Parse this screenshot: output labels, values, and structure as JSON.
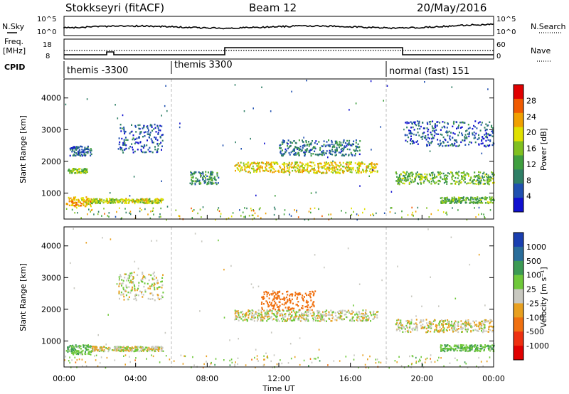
{
  "header": {
    "radar": "Stokkseyri (fitACF)",
    "beam": "Beam 12",
    "date": "20/May/2016"
  },
  "strip": {
    "nsky_label": "N.Sky",
    "nsearch_label": "N.Search",
    "left_top": "10^5",
    "left_bot": "10^0",
    "right_top": "10^5",
    "right_bot": "10^0",
    "freq_label": "Freq.",
    "mhz_label": "[MHz]",
    "freq_top": "18",
    "freq_bot": "8",
    "nave_label": "Nave",
    "nave_top": "60",
    "nave_bot": "0",
    "cpid_label": "CPID",
    "cpid_segments": [
      {
        "label": "themis -3300",
        "start_hour": 0
      },
      {
        "label": "themis 3300",
        "start_hour": 6
      },
      {
        "label": "normal (fast) 151",
        "start_hour": 18
      }
    ]
  },
  "power_panel": {
    "ylabel": "Slant Range [km]",
    "cbar_label": "Power [dB]",
    "cbar_ticks": [
      "4",
      "8",
      "12",
      "16",
      "20",
      "24",
      "28"
    ],
    "cbar_colors": [
      "#1010d0",
      "#2050b0",
      "#2f7f66",
      "#3f9f3f",
      "#80c020",
      "#e0e000",
      "#f0a000",
      "#f05a00",
      "#e00000"
    ]
  },
  "velocity_panel": {
    "ylabel": "Slant Range [km]",
    "cbar_label": "Velocity [m s⁻¹]",
    "cbar_ticks": [
      "1000",
      "500",
      "100",
      "25",
      "-25",
      "-100",
      "-500",
      "-1000"
    ],
    "cbar_colors": [
      "#1a3fb0",
      "#2a6d9a",
      "#3c9a54",
      "#6fc83a",
      "#c8c8c0",
      "#e8a020",
      "#f07010",
      "#ee3010",
      "#e00000"
    ]
  },
  "xaxis": {
    "label": "Time UT",
    "ticks": [
      "00:00",
      "04:00",
      "08:00",
      "12:00",
      "16:00",
      "20:00",
      "00:00"
    ]
  },
  "chart_data": [
    {
      "type": "heatmap",
      "title": "Power",
      "xlabel": "Time UT",
      "ylabel": "Slant Range [km]",
      "xlim_hours": [
        0,
        24
      ],
      "ylim": [
        180,
        4600
      ],
      "yticks": [
        1000,
        2000,
        3000,
        4000
      ],
      "colorbar": {
        "label": "Power [dB]",
        "range": [
          0,
          32
        ],
        "ticks": [
          4,
          8,
          12,
          16,
          20,
          24,
          28
        ]
      },
      "scatter_bands": [
        {
          "t0": 0.1,
          "t1": 1.5,
          "r0": 600,
          "r1": 900,
          "value_db": 22
        },
        {
          "t0": 1.5,
          "t1": 5.5,
          "r0": 700,
          "r1": 850,
          "value_db": 18
        },
        {
          "t0": 0.2,
          "t1": 1.3,
          "r0": 1650,
          "r1": 1800,
          "value_db": 16
        },
        {
          "t0": 0.3,
          "t1": 1.5,
          "r0": 2200,
          "r1": 2500,
          "value_db": 6
        },
        {
          "t0": 3.0,
          "t1": 5.5,
          "r0": 2300,
          "r1": 3200,
          "value_db": 6
        },
        {
          "t0": 7.0,
          "t1": 8.6,
          "r0": 1300,
          "r1": 1700,
          "value_db": 10
        },
        {
          "t0": 9.5,
          "t1": 17.5,
          "r0": 1650,
          "r1": 2000,
          "value_db": 20
        },
        {
          "t0": 12.0,
          "t1": 16.5,
          "r0": 2200,
          "r1": 2700,
          "value_db": 8
        },
        {
          "t0": 18.5,
          "t1": 24.0,
          "r0": 1300,
          "r1": 1700,
          "value_db": 14
        },
        {
          "t0": 19.0,
          "t1": 24.0,
          "r0": 2500,
          "r1": 3300,
          "value_db": 6
        },
        {
          "t0": 21.0,
          "t1": 24.0,
          "r0": 700,
          "r1": 900,
          "value_db": 14
        }
      ]
    },
    {
      "type": "heatmap",
      "title": "Velocity",
      "xlabel": "Time UT",
      "ylabel": "Slant Range [km]",
      "xlim_hours": [
        0,
        24
      ],
      "ylim": [
        180,
        4600
      ],
      "yticks": [
        1000,
        2000,
        3000,
        4000
      ],
      "colorbar": {
        "label": "Velocity [m s⁻¹]",
        "ticks": [
          1000,
          500,
          100,
          25,
          -25,
          -100,
          -500,
          -1000
        ]
      },
      "scatter_bands": [
        {
          "t0": 0.1,
          "t1": 1.5,
          "r0": 600,
          "r1": 900,
          "value_ms": 80
        },
        {
          "t0": 1.5,
          "t1": 5.5,
          "r0": 700,
          "r1": 850,
          "value_ms": 0
        },
        {
          "t0": 3.0,
          "t1": 5.5,
          "r0": 2300,
          "r1": 3200,
          "value_ms": 0
        },
        {
          "t0": 9.5,
          "t1": 17.5,
          "r0": 1650,
          "r1": 2000,
          "value_ms": 0
        },
        {
          "t0": 11.0,
          "t1": 14.0,
          "r0": 2000,
          "r1": 2600,
          "value_ms": -200
        },
        {
          "t0": 18.5,
          "t1": 24.0,
          "r0": 1300,
          "r1": 1700,
          "value_ms": 0
        },
        {
          "t0": 21.0,
          "t1": 24.0,
          "r0": 700,
          "r1": 900,
          "value_ms": 80
        }
      ]
    }
  ]
}
